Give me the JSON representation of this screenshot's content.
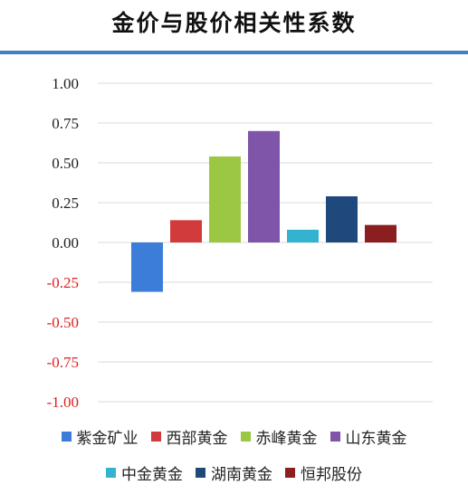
{
  "chart_data": {
    "type": "bar",
    "title": "金价与股价相关性系数",
    "xlabel": "",
    "ylabel": "",
    "ylim": [
      -1.0,
      1.0
    ],
    "yticks": [
      "1.00",
      "0.75",
      "0.50",
      "0.25",
      "0.00",
      "-0.25",
      "-0.50",
      "-0.75",
      "-1.00"
    ],
    "ytick_values": [
      1.0,
      0.75,
      0.5,
      0.25,
      0.0,
      -0.25,
      -0.5,
      -0.75,
      -1.0
    ],
    "grid": true,
    "legend_position": "bottom",
    "series": [
      {
        "name": "紫金矿业",
        "value": -0.31,
        "color": "#3b7dd8"
      },
      {
        "name": "西部黄金",
        "value": 0.14,
        "color": "#d13b3b"
      },
      {
        "name": "赤峰黄金",
        "value": 0.54,
        "color": "#9cc743"
      },
      {
        "name": "山东黄金",
        "value": 0.7,
        "color": "#7e55a8"
      },
      {
        "name": "中金黄金",
        "value": 0.08,
        "color": "#34b3d1"
      },
      {
        "name": "湖南黄金",
        "value": 0.29,
        "color": "#1f497d"
      },
      {
        "name": "恒邦股份",
        "value": 0.11,
        "color": "#8b1e1e"
      }
    ],
    "tick_color_positive": "#222222",
    "tick_color_negative": "#e02020"
  }
}
